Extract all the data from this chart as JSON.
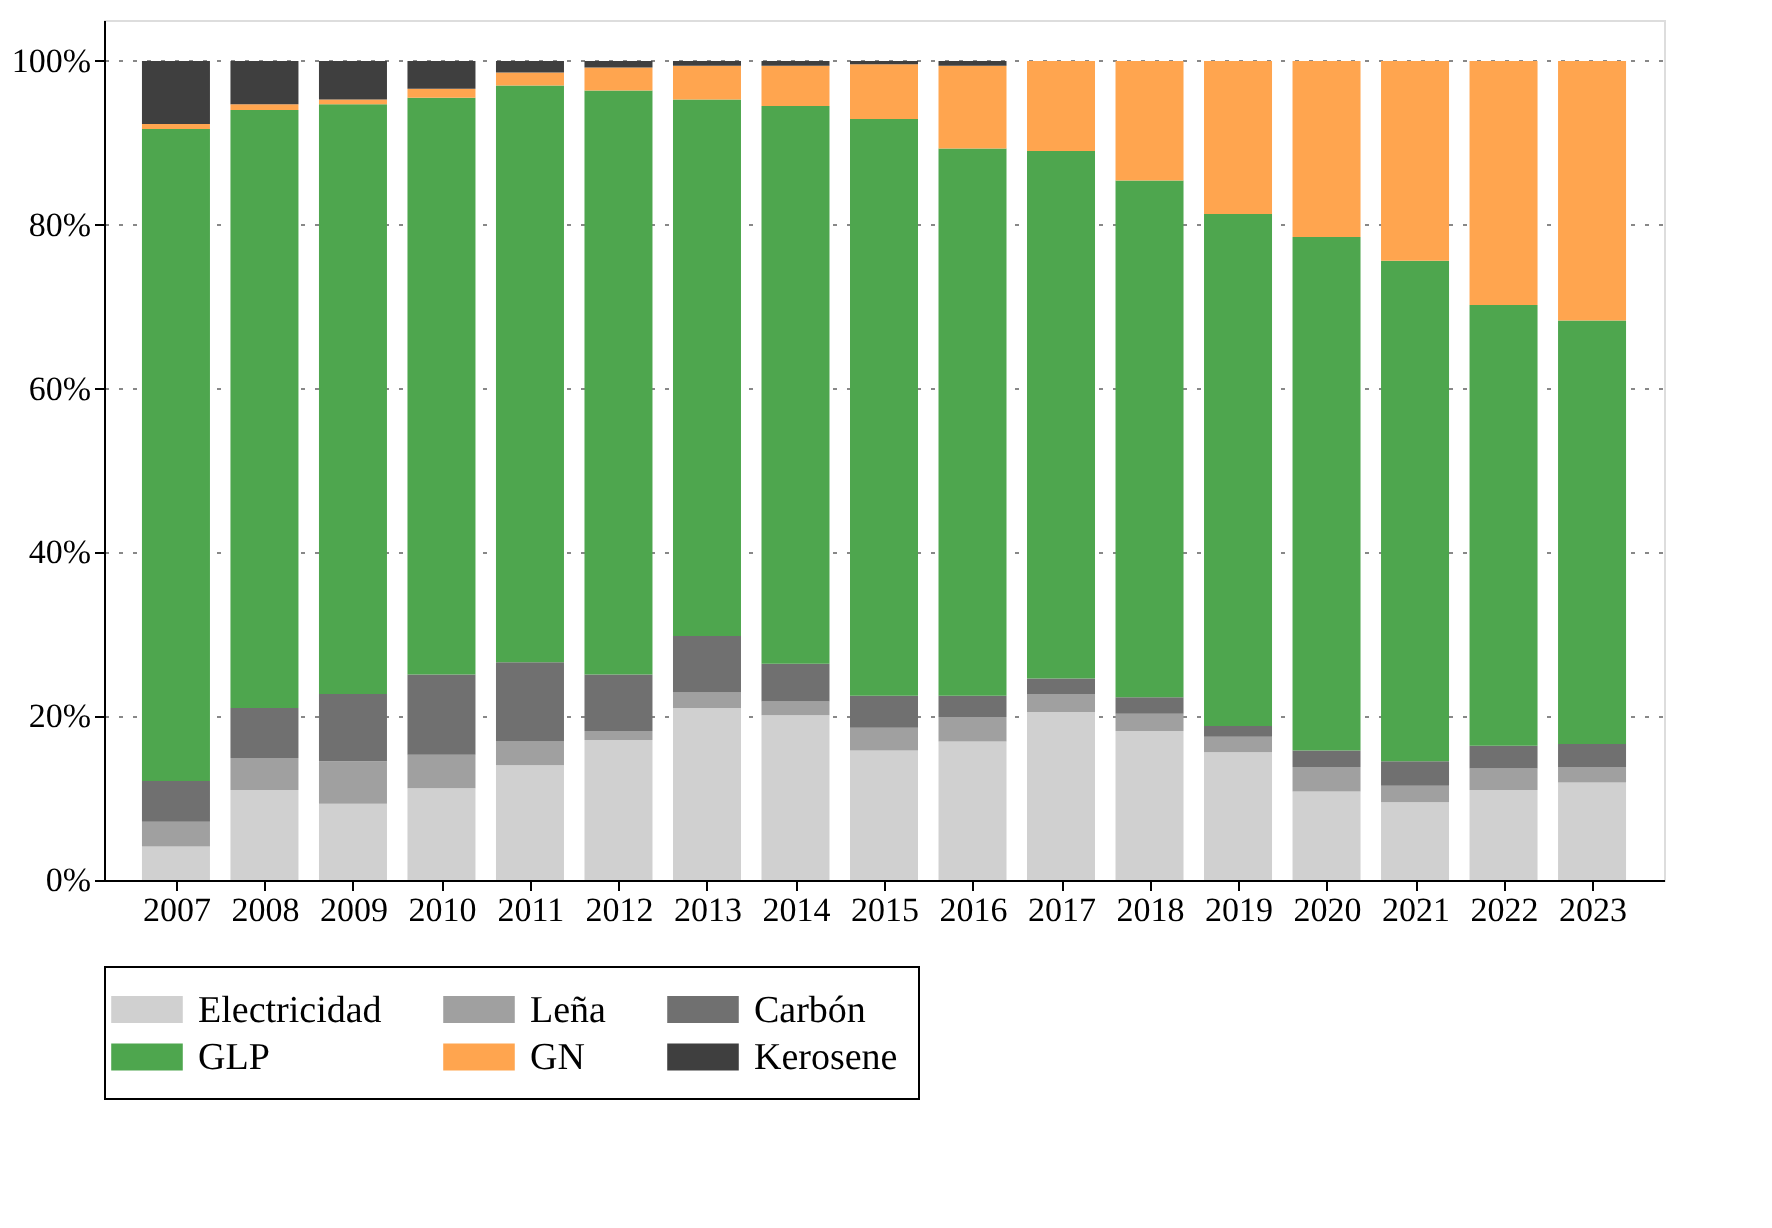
{
  "chart_data": {
    "type": "bar",
    "stacked": true,
    "categories": [
      "2007",
      "2008",
      "2009",
      "2010",
      "2011",
      "2012",
      "2013",
      "2014",
      "2015",
      "2016",
      "2017",
      "2018",
      "2019",
      "2020",
      "2021",
      "2022",
      "2023"
    ],
    "series": [
      {
        "name": "Electricidad",
        "color": "#d0d0d0",
        "values": [
          4.1,
          11.0,
          9.3,
          11.2,
          14.0,
          17.1,
          21.0,
          20.1,
          15.8,
          16.9,
          20.5,
          18.2,
          15.6,
          10.8,
          9.5,
          11.0,
          11.9
        ]
      },
      {
        "name": "Leña",
        "color": "#a0a0a0",
        "values": [
          3.0,
          3.9,
          5.2,
          4.1,
          2.9,
          1.1,
          1.9,
          1.7,
          2.8,
          3.0,
          2.2,
          2.1,
          1.9,
          3.0,
          2.0,
          2.6,
          1.9
        ]
      },
      {
        "name": "Carbón",
        "color": "#707070",
        "values": [
          5.0,
          6.1,
          8.2,
          9.8,
          9.7,
          6.9,
          6.9,
          4.6,
          3.9,
          2.6,
          1.9,
          2.0,
          1.3,
          2.0,
          3.0,
          2.8,
          2.8
        ]
      },
      {
        "name": "GLP",
        "color": "#4ea64e",
        "values": [
          79.6,
          73.0,
          72.0,
          70.4,
          70.4,
          71.3,
          65.5,
          68.1,
          70.4,
          66.8,
          64.4,
          63.1,
          62.5,
          62.7,
          61.1,
          53.8,
          51.7
        ]
      },
      {
        "name": "GN",
        "color": "#ffa54f",
        "values": [
          0.6,
          0.7,
          0.6,
          1.1,
          1.6,
          2.8,
          4.1,
          4.9,
          6.7,
          10.1,
          11.0,
          14.6,
          18.7,
          21.5,
          24.4,
          29.8,
          31.7
        ]
      },
      {
        "name": "Kerosene",
        "color": "#3f3f3f",
        "values": [
          7.7,
          5.3,
          4.7,
          3.4,
          1.4,
          0.8,
          0.6,
          0.6,
          0.4,
          0.6,
          0,
          0,
          0,
          0,
          0,
          0,
          0
        ]
      }
    ],
    "ylim": [
      0,
      105
    ],
    "yticks": [
      {
        "value": 0,
        "label": "0%"
      },
      {
        "value": 20,
        "label": "20%"
      },
      {
        "value": 40,
        "label": "40%"
      },
      {
        "value": 60,
        "label": "60%"
      },
      {
        "value": 80,
        "label": "80%"
      },
      {
        "value": 100,
        "label": "100%"
      }
    ],
    "grid": "y",
    "legend": "bottom"
  }
}
